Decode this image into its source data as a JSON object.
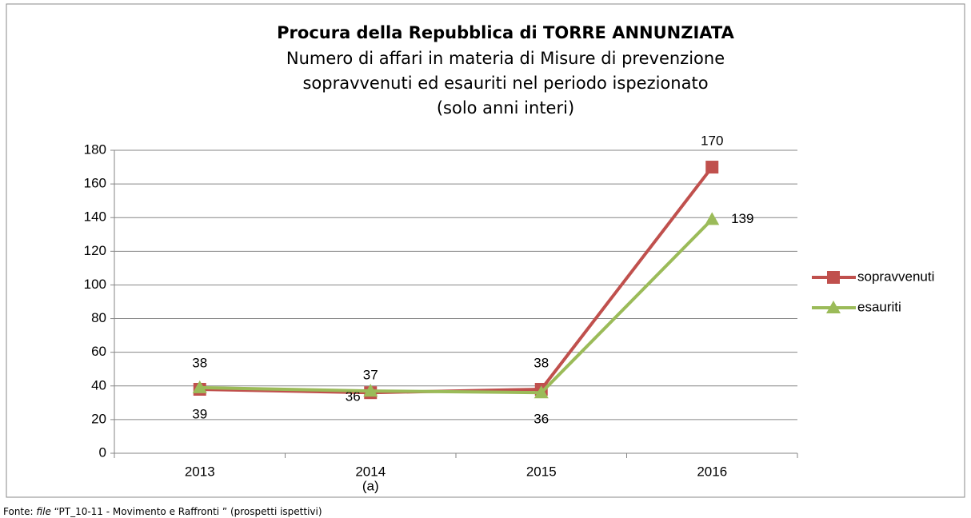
{
  "chart_data": {
    "type": "line",
    "title": "Procura della Repubblica di TORRE ANNUNZIATA",
    "subtitle": [
      "Numero di affari in materia di Misure di prevenzione",
      "sopravvenuti ed esauriti nel periodo ispezionato",
      "(solo anni interi)"
    ],
    "categories": [
      "2013",
      "2014",
      "2015",
      "2016"
    ],
    "x_annotation": "(a)",
    "series": [
      {
        "name": "sopravvenuti",
        "color": "#c0504d",
        "values": [
          38,
          36,
          38,
          170
        ]
      },
      {
        "name": "esauriti",
        "color": "#9bbb59",
        "values": [
          39,
          37,
          36,
          139
        ]
      }
    ],
    "ylim": [
      0,
      180
    ],
    "yticks": [
      0,
      20,
      40,
      60,
      80,
      100,
      120,
      140,
      160,
      180
    ],
    "grid": true,
    "legend": "right",
    "source": [
      "Fonte: ",
      "file",
      " “PT_10-11 - Movimento e Raffronti ” (prospetti ispettivi)"
    ]
  }
}
